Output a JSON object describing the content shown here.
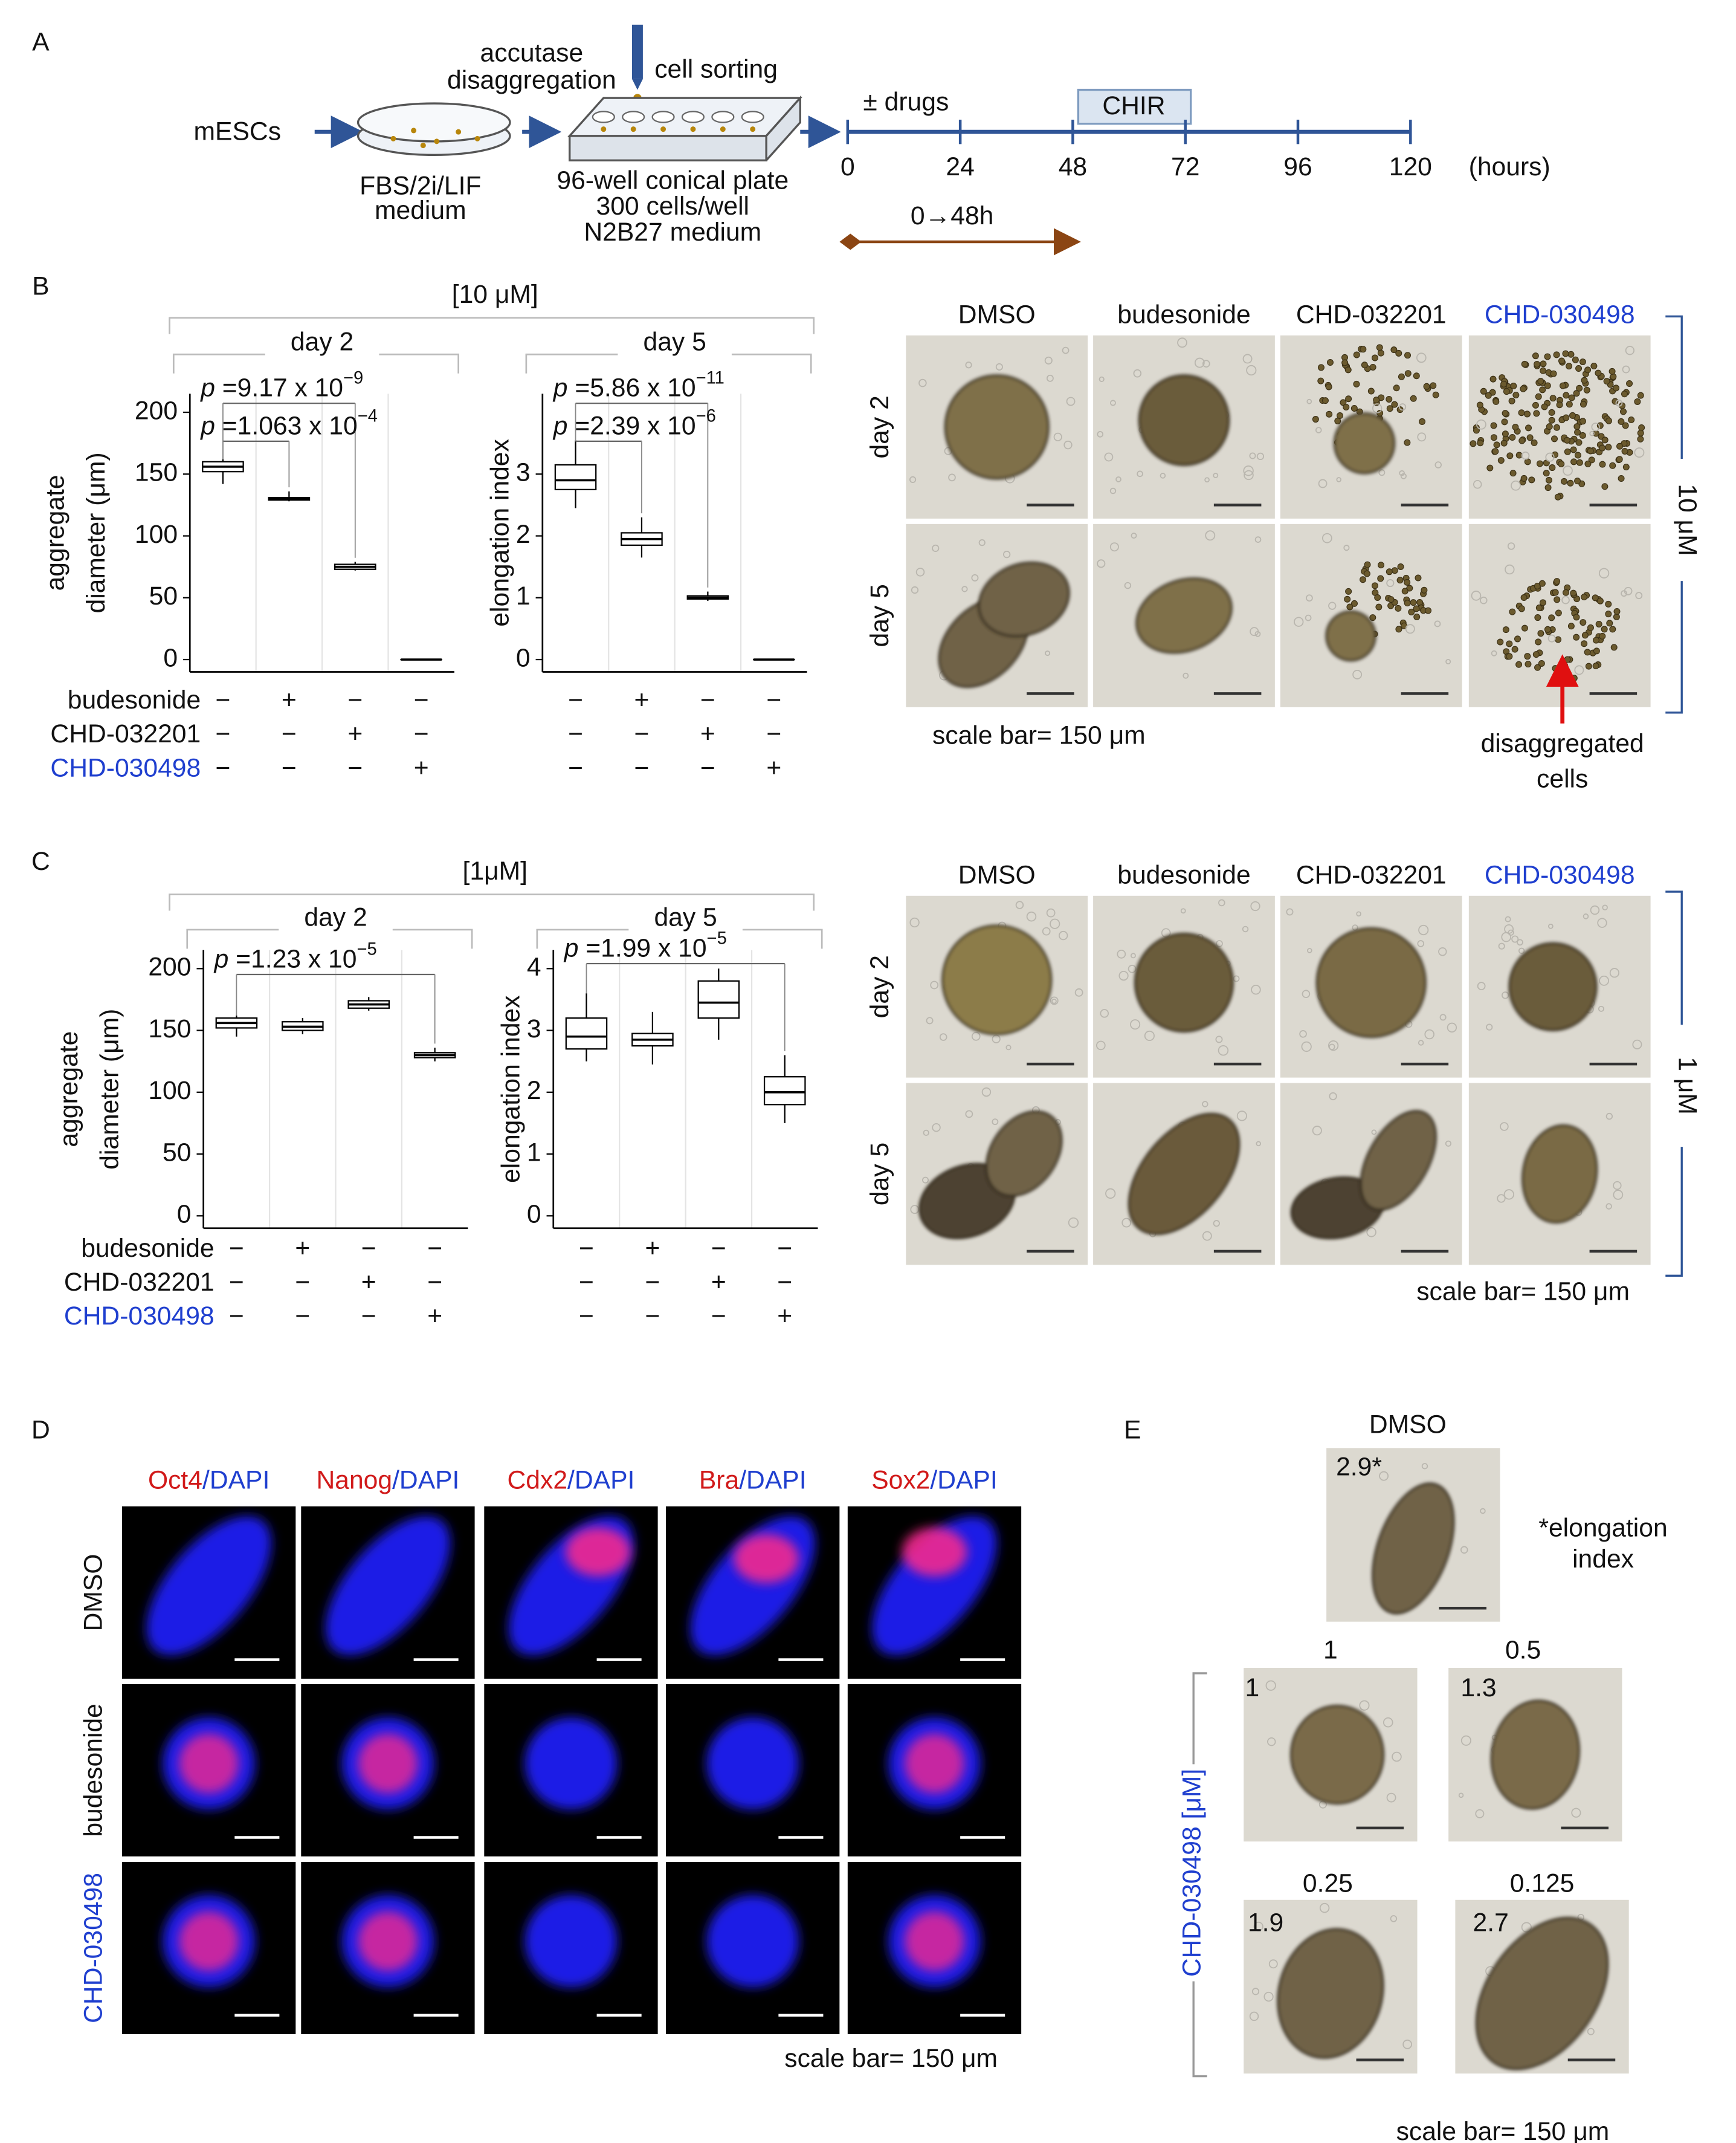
{
  "panel_labels": [
    "A",
    "B",
    "C",
    "D",
    "E"
  ],
  "panel_a": {
    "cells": "mESCs",
    "step1": [
      "accutase",
      "disaggregation"
    ],
    "step2": "cell sorting",
    "dish_medium": [
      "FBS/2i/LIF",
      "medium"
    ],
    "plate": [
      "96-well  conical plate",
      "300 cells/well",
      "N2B27  medium"
    ],
    "drugs": "± drugs",
    "chir": "CHIR",
    "timeline": {
      "xlim": [
        0,
        120
      ],
      "xticks": [
        0,
        24,
        48,
        72,
        96,
        120
      ]
    },
    "unit": "(hours)",
    "window": "0→48h"
  },
  "panel_b": {
    "concentration": "[10 μM]",
    "treatments": [
      {
        "name": "budesonide",
        "signs": [
          "−",
          "+",
          "−",
          "−"
        ]
      },
      {
        "name": "CHD-032201",
        "signs": [
          "−",
          "−",
          "+",
          "−"
        ]
      },
      {
        "name": "CHD-030498",
        "signs": [
          "−",
          "−",
          "−",
          "+"
        ]
      }
    ],
    "image_columns": [
      "DMSO",
      "budesonide",
      "CHD-032201",
      "CHD-030498"
    ],
    "image_rows": [
      "day 2",
      "day 5"
    ],
    "dose": "10 μM",
    "scale_bar": "scale bar= 150 μm",
    "arrow_label": [
      "disaggregated",
      "cells"
    ]
  },
  "panel_c": {
    "concentration": "[1μM]",
    "treatments": [
      {
        "name": "budesonide",
        "signs": [
          "−",
          "+",
          "−",
          "−"
        ]
      },
      {
        "name": "CHD-032201",
        "signs": [
          "−",
          "−",
          "+",
          "−"
        ]
      },
      {
        "name": "CHD-030498",
        "signs": [
          "−",
          "−",
          "−",
          "+"
        ]
      }
    ],
    "image_columns": [
      "DMSO",
      "budesonide",
      "CHD-032201",
      "CHD-030498"
    ],
    "image_rows": [
      "day 2",
      "day 5"
    ],
    "dose": "1 μM",
    "scale_bar": "scale bar= 150 μm"
  },
  "panel_d": {
    "stains": [
      {
        "marker": "Oct4",
        "counter": "/DAPI"
      },
      {
        "marker": "Nanog",
        "counter": "/DAPI"
      },
      {
        "marker": "Cdx2",
        "counter": "/DAPI"
      },
      {
        "marker": "Bra",
        "counter": "/DAPI"
      },
      {
        "marker": "Sox2",
        "counter": "/DAPI"
      }
    ],
    "rows": [
      "DMSO",
      "budesonide",
      "CHD-030498"
    ],
    "scale_bar": "scale bar= 150 μm"
  },
  "panel_e": {
    "control": "DMSO",
    "control_index": "2.9*",
    "note": [
      "*elongation",
      "index"
    ],
    "axis_label": "CHD-030498 [μM]",
    "doses": [
      1,
      0.5,
      0.25,
      0.125
    ],
    "indices": [
      1,
      1.3,
      1.9,
      2.7
    ],
    "scale_bar": "scale bar= 150 μm"
  },
  "chart_data": [
    {
      "type": "box",
      "title": "day 2",
      "ylabel": [
        "aggregate",
        "diameter (μm)"
      ],
      "categories": [
        null,
        null,
        null,
        null
      ],
      "ylim": [
        -10,
        215
      ],
      "yticks": [
        0,
        50,
        100,
        150,
        200
      ],
      "color": "#000000",
      "boxes": [
        {
          "min": 142,
          "q1": 152,
          "median": 156,
          "q3": 160,
          "max": 162
        },
        {
          "min": 128,
          "q1": 129,
          "median": 130,
          "q3": 131,
          "max": 136
        },
        {
          "min": 72,
          "q1": 73,
          "median": 75,
          "q3": 77,
          "max": 79
        },
        {
          "min": 0,
          "q1": 0,
          "median": 0,
          "q3": 0,
          "max": 0
        }
      ],
      "annotations": [
        {
          "p": "p",
          "text": " =9.17 x 10",
          "exp": "−9"
        },
        {
          "p": "p",
          "text": " =1.063 x 10",
          "exp": "−4"
        }
      ]
    },
    {
      "type": "box",
      "title": "day 5",
      "ylabel": [
        "elongation index"
      ],
      "categories": [
        null,
        null,
        null,
        null
      ],
      "ylim": [
        -0.2,
        4.3
      ],
      "yticks": [
        0,
        1,
        2,
        3
      ],
      "color": "#000000",
      "boxes": [
        {
          "min": 2.45,
          "q1": 2.75,
          "median": 2.9,
          "q3": 3.15,
          "max": 3.55
        },
        {
          "min": 1.65,
          "q1": 1.85,
          "median": 1.95,
          "q3": 2.05,
          "max": 2.3
        },
        {
          "min": 0.95,
          "q1": 0.98,
          "median": 1.0,
          "q3": 1.03,
          "max": 1.1
        },
        {
          "min": 0,
          "q1": 0,
          "median": 0,
          "q3": 0,
          "max": 0
        }
      ],
      "annotations": [
        {
          "p": "p",
          "text": " =5.86 x 10",
          "exp": "−11"
        },
        {
          "p": "p",
          "text": " =2.39 x 10",
          "exp": "−6"
        }
      ]
    },
    {
      "type": "box",
      "title": "day 2",
      "ylabel": [
        "aggregate",
        "diameter (μm)"
      ],
      "categories": [
        null,
        null,
        null,
        null
      ],
      "ylim": [
        -10,
        215
      ],
      "yticks": [
        0,
        50,
        100,
        150,
        200
      ],
      "color": "#000000",
      "boxes": [
        {
          "min": 145,
          "q1": 152,
          "median": 156,
          "q3": 160,
          "max": 162
        },
        {
          "min": 147,
          "q1": 150,
          "median": 153,
          "q3": 157,
          "max": 160
        },
        {
          "min": 166,
          "q1": 168,
          "median": 171,
          "q3": 174,
          "max": 177
        },
        {
          "min": 125,
          "q1": 128,
          "median": 130,
          "q3": 132,
          "max": 136
        }
      ],
      "annotations": [
        {
          "p": "p",
          "text": " =1.23 x 10",
          "exp": "−5"
        }
      ]
    },
    {
      "type": "box",
      "title": "day 5",
      "ylabel": [
        "elongation index"
      ],
      "categories": [
        null,
        null,
        null,
        null
      ],
      "ylim": [
        -0.2,
        4.3
      ],
      "yticks": [
        0,
        1,
        2,
        3,
        4
      ],
      "color": "#000000",
      "boxes": [
        {
          "min": 2.5,
          "q1": 2.7,
          "median": 2.9,
          "q3": 3.2,
          "max": 3.6
        },
        {
          "min": 2.45,
          "q1": 2.75,
          "median": 2.85,
          "q3": 2.95,
          "max": 3.3
        },
        {
          "min": 2.85,
          "q1": 3.2,
          "median": 3.45,
          "q3": 3.8,
          "max": 4.0
        },
        {
          "min": 1.5,
          "q1": 1.8,
          "median": 2.0,
          "q3": 2.25,
          "max": 2.6
        }
      ],
      "annotations": [
        {
          "p": "p",
          "text": " =1.99 x 10",
          "exp": "−5"
        }
      ]
    }
  ]
}
